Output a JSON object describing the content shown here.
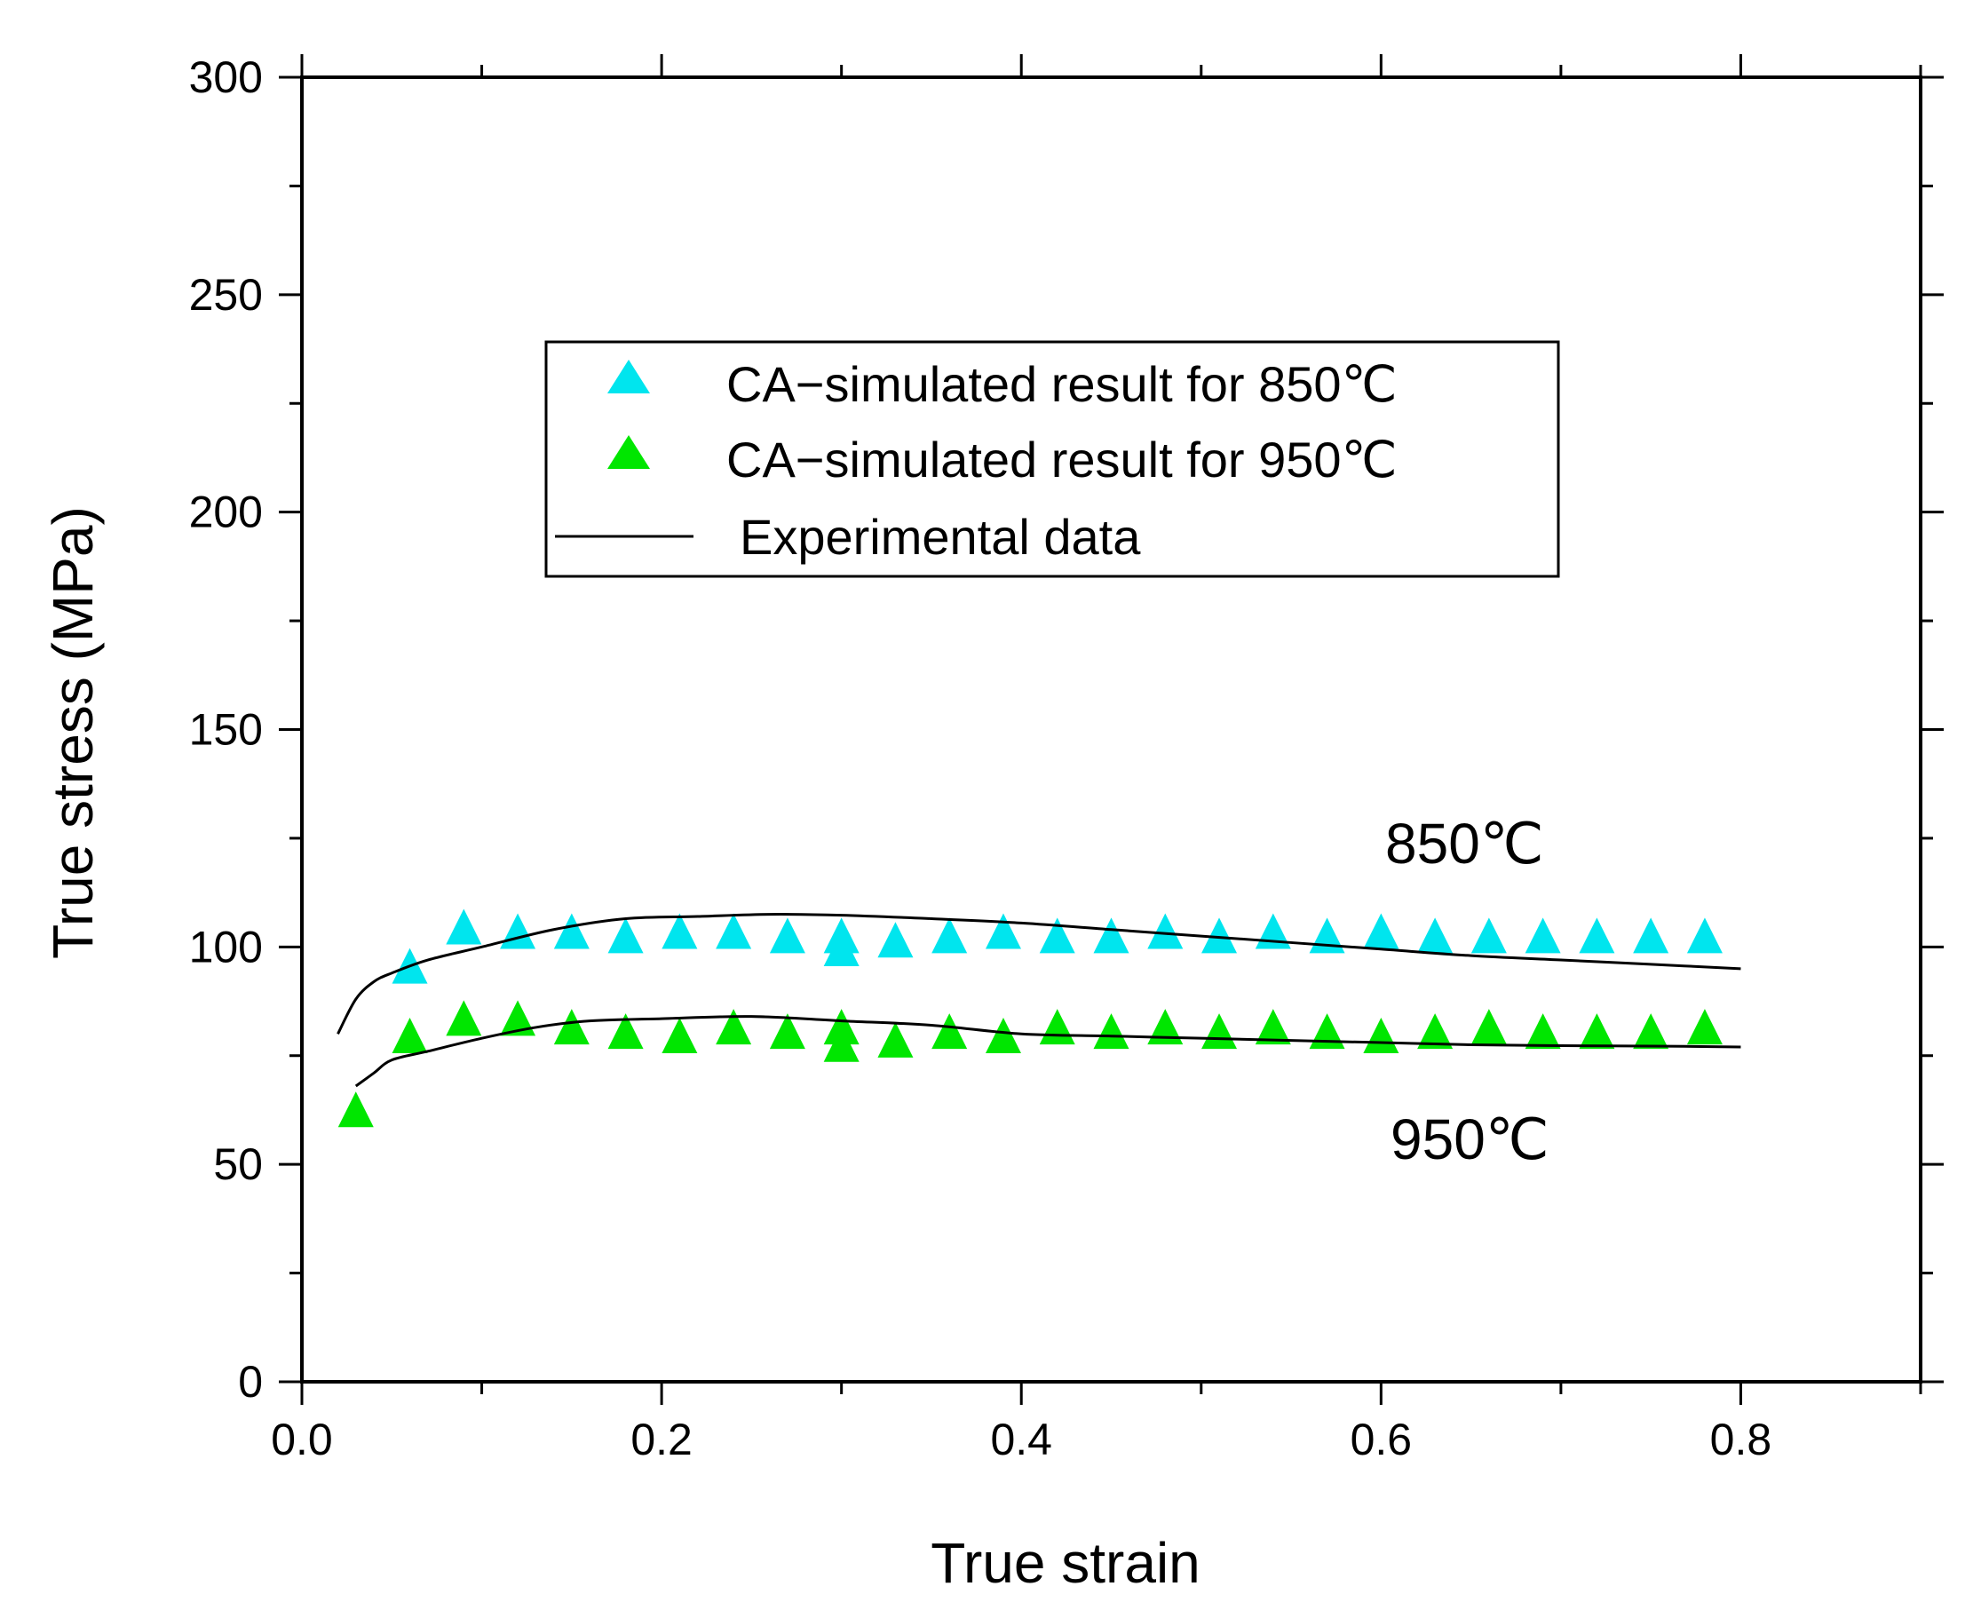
{
  "chart_data": {
    "type": "scatter",
    "title": "",
    "xlabel": "True strain",
    "ylabel": "True stress (MPa)",
    "xlim": [
      0.0,
      0.9
    ],
    "ylim": [
      0,
      300
    ],
    "xticks": [
      0.0,
      0.2,
      0.4,
      0.6,
      0.8
    ],
    "xtick_labels": [
      "0.0",
      "0.2",
      "0.4",
      "0.6",
      "0.8"
    ],
    "yticks": [
      0,
      50,
      100,
      150,
      200,
      250,
      300
    ],
    "ytick_labels": [
      "0",
      "50",
      "100",
      "150",
      "200",
      "250",
      "300"
    ],
    "grid": false,
    "legend_position": "upper-center",
    "series": [
      {
        "name": "CA-simulated result for 850℃",
        "kind": "marker-triangle",
        "color": "#00e5ee",
        "x": [
          0.06,
          0.09,
          0.12,
          0.15,
          0.18,
          0.21,
          0.24,
          0.27,
          0.3,
          0.3,
          0.33,
          0.36,
          0.39,
          0.42,
          0.45,
          0.48,
          0.51,
          0.54,
          0.57,
          0.6,
          0.63,
          0.66,
          0.69,
          0.72,
          0.75,
          0.78
        ],
        "y": [
          95,
          104,
          103,
          103,
          102,
          103,
          103,
          102,
          102,
          99,
          101,
          102,
          103,
          102,
          102,
          103,
          102,
          103,
          102,
          103,
          102,
          102,
          102,
          102,
          102,
          102
        ]
      },
      {
        "name": "CA-simulated result for 950℃",
        "kind": "marker-triangle",
        "color": "#00e600",
        "x": [
          0.03,
          0.06,
          0.09,
          0.12,
          0.15,
          0.18,
          0.21,
          0.24,
          0.27,
          0.3,
          0.3,
          0.33,
          0.36,
          0.39,
          0.42,
          0.45,
          0.48,
          0.51,
          0.54,
          0.57,
          0.6,
          0.63,
          0.66,
          0.69,
          0.72,
          0.75,
          0.78
        ],
        "y": [
          62,
          79,
          83,
          83,
          81,
          80,
          79,
          81,
          80,
          81,
          77,
          78,
          80,
          79,
          81,
          80,
          81,
          80,
          81,
          80,
          79,
          80,
          81,
          80,
          80,
          80,
          81
        ]
      },
      {
        "name": "Experimental data",
        "kind": "line",
        "color": "#000000",
        "curves": [
          {
            "label": "850℃",
            "x": [
              0.02,
              0.03,
              0.04,
              0.05,
              0.07,
              0.1,
              0.14,
              0.18,
              0.22,
              0.26,
              0.3,
              0.35,
              0.4,
              0.45,
              0.5,
              0.55,
              0.6,
              0.65,
              0.7,
              0.75,
              0.8
            ],
            "y": [
              80,
              88,
              92,
              94,
              97,
              100,
              104,
              106.5,
              107,
              107.5,
              107.3,
              106.5,
              105.5,
              104,
              102.5,
              101,
              99.5,
              98,
              97,
              96,
              95
            ]
          },
          {
            "label": "950℃",
            "x": [
              0.03,
              0.04,
              0.05,
              0.07,
              0.1,
              0.13,
              0.16,
              0.2,
              0.25,
              0.3,
              0.35,
              0.4,
              0.45,
              0.5,
              0.55,
              0.6,
              0.65,
              0.7,
              0.75,
              0.8
            ],
            "y": [
              68,
              71,
              74,
              76,
              79,
              81.5,
              83,
              83.5,
              84,
              83,
              82,
              80,
              79.5,
              79,
              78.5,
              78,
              77.5,
              77.3,
              77.2,
              77
            ]
          }
        ]
      }
    ],
    "legend": [
      "CA−simulated result for 850℃",
      "CA−simulated result for 950℃",
      "Experimental data"
    ],
    "annotations": [
      {
        "text": "850℃",
        "x": 0.65,
        "y": 118
      },
      {
        "text": "950℃",
        "x": 0.65,
        "y": 55
      }
    ]
  }
}
